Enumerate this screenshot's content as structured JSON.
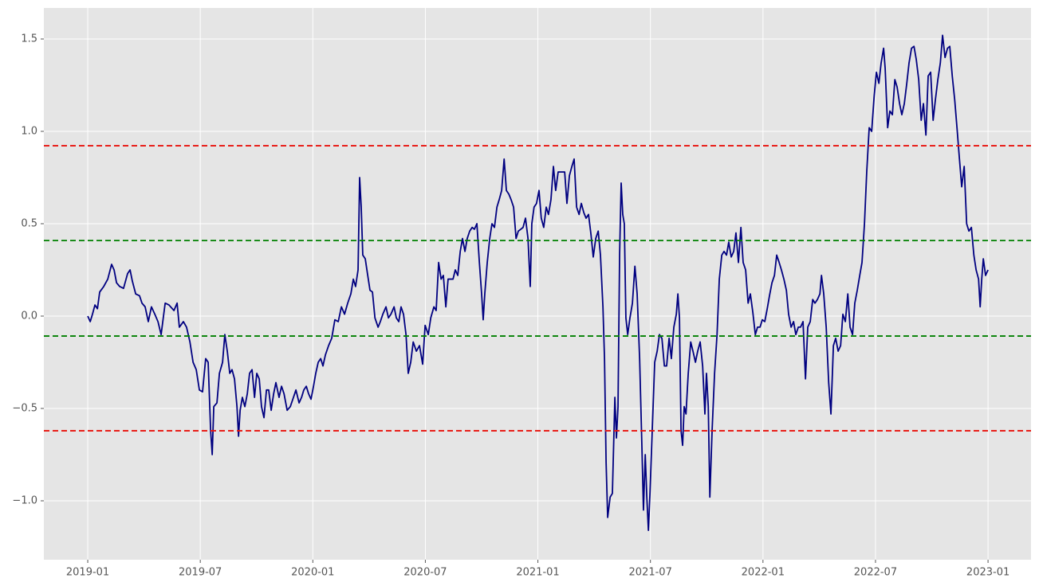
{
  "chart_data": {
    "type": "line",
    "x": [
      2019.0,
      2019.011,
      2019.021,
      2019.032,
      2019.043,
      2019.053,
      2019.071,
      2019.089,
      2019.106,
      2019.117,
      2019.128,
      2019.142,
      2019.159,
      2019.177,
      2019.188,
      2019.198,
      2019.213,
      2019.23,
      2019.241,
      2019.255,
      2019.269,
      2019.283,
      2019.298,
      2019.312,
      2019.326,
      2019.344,
      2019.361,
      2019.383,
      2019.397,
      2019.407,
      2019.425,
      2019.439,
      2019.454,
      2019.468,
      2019.482,
      2019.496,
      2019.51,
      2019.524,
      2019.535,
      2019.546,
      2019.553,
      2019.56,
      2019.574,
      2019.585,
      2019.599,
      2019.609,
      2019.62,
      2019.631,
      2019.641,
      2019.652,
      2019.663,
      2019.67,
      2019.677,
      2019.687,
      2019.698,
      2019.709,
      2019.719,
      2019.73,
      2019.741,
      2019.751,
      2019.762,
      2019.772,
      2019.783,
      2019.794,
      2019.804,
      2019.815,
      2019.826,
      2019.836,
      2019.85,
      2019.861,
      2019.872,
      2019.886,
      2019.9,
      2019.914,
      2019.925,
      2019.939,
      2019.95,
      2019.96,
      2019.971,
      2019.981,
      2019.992,
      2020.003,
      2020.013,
      2020.024,
      2020.035,
      2020.045,
      2020.056,
      2020.07,
      2020.084,
      2020.098,
      2020.113,
      2020.127,
      2020.141,
      2020.155,
      2020.169,
      2020.18,
      2020.19,
      2020.201,
      2020.208,
      2020.215,
      2020.222,
      2020.233,
      2020.244,
      2020.254,
      2020.265,
      2020.276,
      2020.29,
      2020.3,
      2020.311,
      2020.325,
      2020.336,
      2020.347,
      2020.361,
      2020.371,
      2020.382,
      2020.392,
      2020.403,
      2020.414,
      2020.424,
      2020.435,
      2020.446,
      2020.46,
      2020.474,
      2020.488,
      2020.499,
      2020.513,
      2020.524,
      2020.538,
      2020.548,
      2020.559,
      2020.57,
      2020.58,
      2020.591,
      2020.601,
      2020.612,
      2020.623,
      2020.633,
      2020.644,
      2020.655,
      2020.665,
      2020.676,
      2020.686,
      2020.697,
      2020.708,
      2020.718,
      2020.729,
      2020.74,
      2020.75,
      2020.757,
      2020.764,
      2020.775,
      2020.786,
      2020.796,
      2020.807,
      2020.818,
      2020.828,
      2020.839,
      2020.85,
      2020.86,
      2020.871,
      2020.881,
      2020.892,
      2020.903,
      2020.913,
      2020.924,
      2020.934,
      2020.945,
      2020.956,
      2020.966,
      2020.973,
      2020.983,
      2020.994,
      2021.005,
      2021.015,
      2021.026,
      2021.037,
      2021.047,
      2021.058,
      2021.069,
      2021.079,
      2021.09,
      2021.104,
      2021.119,
      2021.129,
      2021.14,
      2021.151,
      2021.161,
      2021.172,
      2021.183,
      2021.193,
      2021.204,
      2021.214,
      2021.225,
      2021.236,
      2021.246,
      2021.257,
      2021.268,
      2021.278,
      2021.289,
      2021.296,
      2021.303,
      2021.31,
      2021.321,
      2021.331,
      2021.342,
      2021.349,
      2021.356,
      2021.363,
      2021.37,
      2021.377,
      2021.384,
      2021.391,
      2021.399,
      2021.409,
      2021.42,
      2021.431,
      2021.441,
      2021.452,
      2021.462,
      2021.469,
      2021.477,
      2021.484,
      2021.491,
      2021.498,
      2021.508,
      2021.519,
      2021.53,
      2021.54,
      2021.551,
      2021.562,
      2021.572,
      2021.583,
      2021.593,
      2021.604,
      2021.615,
      2021.622,
      2021.629,
      2021.636,
      2021.643,
      2021.65,
      2021.658,
      2021.668,
      2021.679,
      2021.689,
      2021.7,
      2021.71,
      2021.721,
      2021.732,
      2021.742,
      2021.749,
      2021.757,
      2021.764,
      2021.774,
      2021.785,
      2021.796,
      2021.806,
      2021.817,
      2021.827,
      2021.838,
      2021.848,
      2021.859,
      2021.87,
      2021.88,
      2021.891,
      2021.902,
      2021.912,
      2021.923,
      2021.934,
      2021.944,
      2021.955,
      2021.966,
      2021.976,
      2021.987,
      2021.997,
      2022.008,
      2022.019,
      2022.029,
      2022.04,
      2022.051,
      2022.061,
      2022.072,
      2022.082,
      2022.093,
      2022.104,
      2022.114,
      2022.125,
      2022.136,
      2022.146,
      2022.157,
      2022.167,
      2022.178,
      2022.189,
      2022.199,
      2022.21,
      2022.221,
      2022.231,
      2022.242,
      2022.253,
      2022.26,
      2022.27,
      2022.281,
      2022.292,
      2022.302,
      2022.313,
      2022.323,
      2022.334,
      2022.345,
      2022.355,
      2022.366,
      2022.377,
      2022.387,
      2022.398,
      2022.408,
      2022.419,
      2022.43,
      2022.44,
      2022.451,
      2022.461,
      2022.472,
      2022.483,
      2022.494,
      2022.504,
      2022.515,
      2022.525,
      2022.536,
      2022.543,
      2022.554,
      2022.564,
      2022.575,
      2022.586,
      2022.596,
      2022.607,
      2022.617,
      2022.628,
      2022.639,
      2022.649,
      2022.66,
      2022.671,
      2022.681,
      2022.692,
      2022.703,
      2022.713,
      2022.724,
      2022.734,
      2022.745,
      2022.756,
      2022.766,
      2022.777,
      2022.788,
      2022.798,
      2022.809,
      2022.82,
      2022.83,
      2022.841,
      2022.852,
      2022.862,
      2022.873,
      2022.883,
      2022.894,
      2022.905,
      2022.915,
      2022.926,
      2022.937,
      2022.947,
      2022.958,
      2022.965,
      2022.972,
      2022.979,
      2022.989,
      2023.0
    ],
    "series": [
      {
        "color": "#000080",
        "values": [
          0.0,
          -0.03,
          0.01,
          0.06,
          0.04,
          0.13,
          0.16,
          0.2,
          0.28,
          0.25,
          0.18,
          0.16,
          0.15,
          0.23,
          0.25,
          0.19,
          0.12,
          0.11,
          0.07,
          0.05,
          -0.03,
          0.05,
          0.01,
          -0.03,
          -0.1,
          0.07,
          0.06,
          0.03,
          0.07,
          -0.06,
          -0.03,
          -0.06,
          -0.14,
          -0.25,
          -0.29,
          -0.4,
          -0.41,
          -0.23,
          -0.25,
          -0.62,
          -0.75,
          -0.49,
          -0.47,
          -0.31,
          -0.25,
          -0.1,
          -0.19,
          -0.31,
          -0.29,
          -0.34,
          -0.49,
          -0.65,
          -0.51,
          -0.44,
          -0.49,
          -0.42,
          -0.31,
          -0.29,
          -0.44,
          -0.31,
          -0.34,
          -0.49,
          -0.55,
          -0.4,
          -0.4,
          -0.51,
          -0.42,
          -0.36,
          -0.44,
          -0.38,
          -0.42,
          -0.51,
          -0.49,
          -0.44,
          -0.4,
          -0.47,
          -0.44,
          -0.4,
          -0.38,
          -0.42,
          -0.45,
          -0.38,
          -0.31,
          -0.25,
          -0.23,
          -0.27,
          -0.21,
          -0.16,
          -0.12,
          -0.02,
          -0.03,
          0.05,
          0.01,
          0.07,
          0.12,
          0.2,
          0.16,
          0.25,
          0.75,
          0.59,
          0.33,
          0.31,
          0.22,
          0.14,
          0.13,
          -0.01,
          -0.06,
          -0.03,
          0.01,
          0.05,
          -0.01,
          0.01,
          0.05,
          -0.01,
          -0.03,
          0.05,
          0.01,
          -0.1,
          -0.31,
          -0.25,
          -0.14,
          -0.19,
          -0.16,
          -0.26,
          -0.05,
          -0.1,
          -0.01,
          0.05,
          0.03,
          0.29,
          0.2,
          0.22,
          0.05,
          0.2,
          0.2,
          0.2,
          0.25,
          0.22,
          0.35,
          0.42,
          0.35,
          0.42,
          0.46,
          0.48,
          0.47,
          0.5,
          0.29,
          0.12,
          -0.02,
          0.12,
          0.29,
          0.42,
          0.5,
          0.48,
          0.59,
          0.63,
          0.68,
          0.85,
          0.68,
          0.66,
          0.63,
          0.59,
          0.42,
          0.46,
          0.47,
          0.48,
          0.53,
          0.42,
          0.16,
          0.5,
          0.59,
          0.61,
          0.68,
          0.53,
          0.48,
          0.59,
          0.55,
          0.63,
          0.81,
          0.68,
          0.78,
          0.78,
          0.78,
          0.61,
          0.76,
          0.81,
          0.85,
          0.59,
          0.55,
          0.61,
          0.56,
          0.53,
          0.55,
          0.44,
          0.32,
          0.42,
          0.46,
          0.33,
          0.05,
          -0.23,
          -0.79,
          -1.09,
          -0.98,
          -0.96,
          -0.44,
          -0.66,
          -0.49,
          0.33,
          0.72,
          0.55,
          0.5,
          -0.01,
          -0.1,
          -0.01,
          0.07,
          0.27,
          0.12,
          -0.23,
          -0.7,
          -1.05,
          -0.75,
          -0.98,
          -1.16,
          -0.96,
          -0.62,
          -0.25,
          -0.19,
          -0.1,
          -0.12,
          -0.27,
          -0.27,
          -0.12,
          -0.23,
          -0.06,
          0.01,
          0.12,
          -0.01,
          -0.62,
          -0.7,
          -0.49,
          -0.53,
          -0.31,
          -0.14,
          -0.19,
          -0.25,
          -0.19,
          -0.14,
          -0.27,
          -0.53,
          -0.31,
          -0.49,
          -0.98,
          -0.62,
          -0.31,
          -0.1,
          0.2,
          0.33,
          0.35,
          0.33,
          0.4,
          0.32,
          0.35,
          0.45,
          0.29,
          0.48,
          0.29,
          0.25,
          0.07,
          0.12,
          0.02,
          -0.1,
          -0.06,
          -0.06,
          -0.02,
          -0.03,
          0.04,
          0.11,
          0.18,
          0.22,
          0.33,
          0.29,
          0.25,
          0.2,
          0.14,
          0.01,
          -0.06,
          -0.03,
          -0.1,
          -0.06,
          -0.06,
          -0.03,
          -0.34,
          -0.06,
          -0.03,
          0.09,
          0.07,
          0.09,
          0.12,
          0.22,
          0.12,
          -0.06,
          -0.36,
          -0.53,
          -0.16,
          -0.12,
          -0.19,
          -0.16,
          0.01,
          -0.03,
          0.12,
          -0.06,
          -0.1,
          0.07,
          0.14,
          0.22,
          0.29,
          0.5,
          0.78,
          1.02,
          1.0,
          1.19,
          1.32,
          1.26,
          1.37,
          1.45,
          1.34,
          1.02,
          1.11,
          1.09,
          1.28,
          1.24,
          1.15,
          1.09,
          1.15,
          1.26,
          1.37,
          1.45,
          1.46,
          1.39,
          1.28,
          1.06,
          1.15,
          0.98,
          1.3,
          1.32,
          1.06,
          1.17,
          1.28,
          1.37,
          1.52,
          1.4,
          1.45,
          1.46,
          1.3,
          1.17,
          1.02,
          0.85,
          0.7,
          0.81,
          0.5,
          0.46,
          0.48,
          0.33,
          0.25,
          0.2,
          0.05,
          0.2,
          0.31,
          0.22,
          0.25
        ]
      }
    ],
    "hlines": [
      {
        "value": 0.922,
        "color": "#e8120c",
        "linestyle": "dashed"
      },
      {
        "value": 0.409,
        "color": "#008000",
        "linestyle": "dashed"
      },
      {
        "value": -0.108,
        "color": "#008000",
        "linestyle": "dashed"
      },
      {
        "value": -0.621,
        "color": "#e8120c",
        "linestyle": "dashed"
      }
    ],
    "xlim": [
      2018.805,
      2023.191
    ],
    "xticks": [
      {
        "value": 2019.0,
        "label": "2019-01"
      },
      {
        "value": 2019.5,
        "label": "2019-07"
      },
      {
        "value": 2020.0,
        "label": "2020-01"
      },
      {
        "value": 2020.5,
        "label": "2020-07"
      },
      {
        "value": 2021.0,
        "label": "2021-01"
      },
      {
        "value": 2021.5,
        "label": "2021-07"
      },
      {
        "value": 2022.0,
        "label": "2022-01"
      },
      {
        "value": 2022.5,
        "label": "2022-07"
      },
      {
        "value": 2023.0,
        "label": "2023-01"
      }
    ],
    "ylim": [
      -1.319,
      1.668
    ],
    "yticks": [
      {
        "value": -1.0,
        "label": "−1.0"
      },
      {
        "value": -0.5,
        "label": "−0.5"
      },
      {
        "value": 0.0,
        "label": "0.0"
      },
      0.5,
      {
        "value": 1.0,
        "label": "1.0"
      },
      1.5
    ],
    "grid": true,
    "background": "#e5e5e5"
  }
}
